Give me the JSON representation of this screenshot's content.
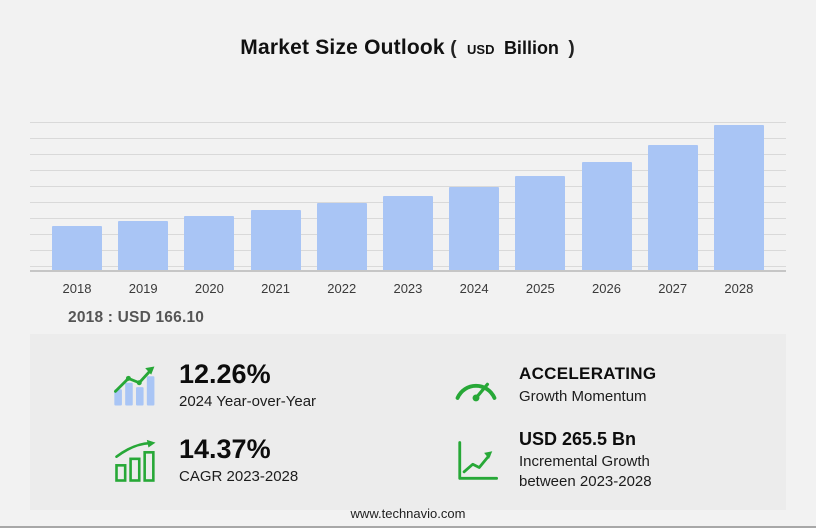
{
  "title": {
    "main": "Market Size Outlook",
    "open_paren": "(",
    "currency": "USD",
    "unit": "Billion",
    "close_paren": ")"
  },
  "chart_data": {
    "type": "bar",
    "title": "Market Size Outlook (USD Billion)",
    "categories": [
      "2018",
      "2019",
      "2020",
      "2021",
      "2022",
      "2023",
      "2024",
      "2025",
      "2026",
      "2027",
      "2028"
    ],
    "values": [
      166.1,
      183.5,
      203.0,
      224.8,
      249.5,
      277.3,
      311.3,
      352.9,
      404.6,
      467.4,
      542.8
    ],
    "unit": "USD Billion",
    "xlabel": "",
    "ylabel": "",
    "ylim": [
      0,
      560
    ],
    "grid": true,
    "legend": false,
    "bar_color": "#a9c5f5"
  },
  "note": {
    "text": "2018 : USD 166.10"
  },
  "stats": {
    "yoy": {
      "value": "12.26%",
      "label": "2024 Year-over-Year",
      "icon": "bar-chart-rising-arrow"
    },
    "momentum": {
      "value": "ACCELERATING",
      "label": "Growth Momentum",
      "icon": "speedometer"
    },
    "cagr": {
      "value": "14.37%",
      "label": "CAGR 2023-2028",
      "icon": "outlined-bars-arrow"
    },
    "incremental": {
      "value": "USD 265.5 Bn",
      "label_line1": "Incremental Growth",
      "label_line2": "between 2023-2028",
      "icon": "axes-growth-arrow"
    }
  },
  "footer": {
    "website": "www.technavio.com"
  },
  "colors": {
    "accent_green": "#27a837",
    "bar_blue": "#a9c5f5",
    "background": "#f2f2f2",
    "panel": "#ececec"
  }
}
